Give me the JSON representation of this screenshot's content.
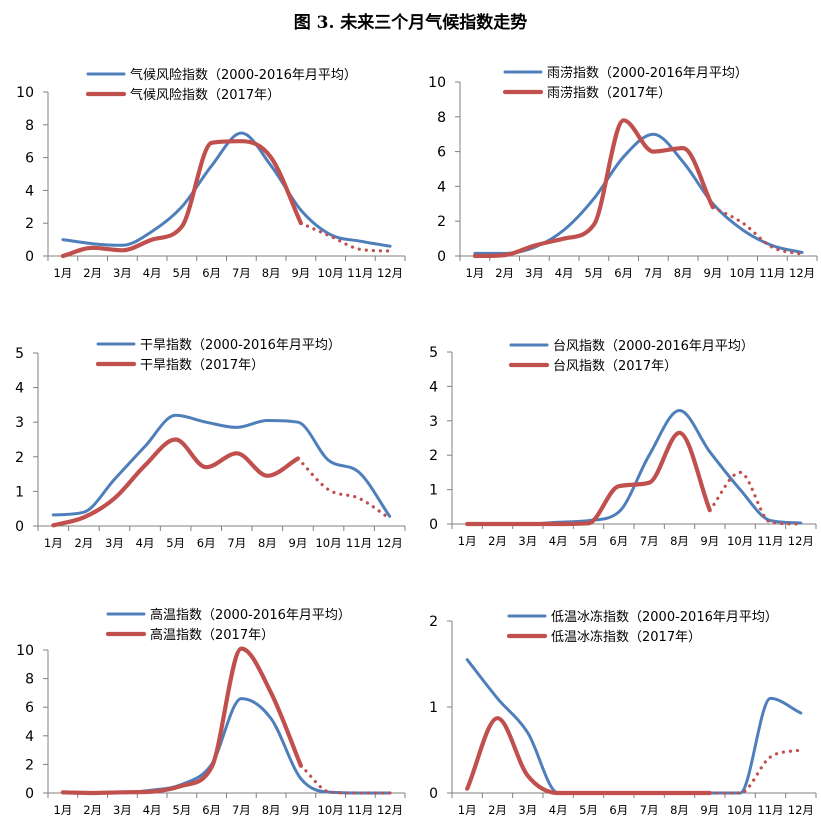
{
  "figure_title": "图 3. 未来三个月气候指数走势",
  "colors": {
    "avg": "#4f7fbb",
    "cur": "#c0504d",
    "axis": "#808080"
  },
  "months": [
    "1月",
    "2月",
    "3月",
    "4月",
    "5月",
    "6月",
    "7月",
    "8月",
    "9月",
    "10月",
    "11月",
    "12月"
  ],
  "chart_data": [
    {
      "type": "line",
      "ylim": [
        0,
        10
      ],
      "yticks": [
        0,
        2,
        4,
        6,
        8,
        10
      ],
      "legend": [
        "气候风险指数（2000-2016年月平均）",
        "气候风险指数（2017年）"
      ],
      "series": [
        {
          "name": "气候风险指数（2000-2016年月平均）",
          "style": "solid",
          "x": [
            1,
            2,
            3,
            4,
            5,
            6,
            7,
            8,
            9,
            10,
            11,
            12
          ],
          "values": [
            1.0,
            0.75,
            0.65,
            1.5,
            3.0,
            5.5,
            7.5,
            5.5,
            2.8,
            1.3,
            0.9,
            0.6
          ]
        },
        {
          "name": "气候风险指数（2017年）",
          "style": "solid",
          "x": [
            1,
            2,
            3,
            4,
            5,
            6,
            7,
            8,
            9
          ],
          "values": [
            0.0,
            0.5,
            0.35,
            1.0,
            1.8,
            6.9,
            7.0,
            6.0,
            2.0
          ]
        },
        {
          "name": "",
          "style": "dotted",
          "x": [
            9,
            10,
            11,
            12
          ],
          "values": [
            2.0,
            1.2,
            0.4,
            0.3
          ]
        }
      ]
    },
    {
      "type": "line",
      "ylim": [
        0,
        10
      ],
      "yticks": [
        0,
        2,
        4,
        6,
        8,
        10
      ],
      "legend": [
        "雨涝指数（2000-2016年月平均）",
        "雨涝指数（2017年）"
      ],
      "series": [
        {
          "name": "雨涝指数（2000-2016年月平均）",
          "style": "solid",
          "x": [
            1,
            2,
            3,
            4,
            5,
            6,
            7,
            8,
            9,
            10,
            11,
            12
          ],
          "values": [
            0.15,
            0.15,
            0.5,
            1.5,
            3.3,
            5.7,
            7.0,
            5.4,
            3.0,
            1.5,
            0.6,
            0.2
          ]
        },
        {
          "name": "雨涝指数（2017年）",
          "style": "solid",
          "x": [
            1,
            2,
            3,
            4,
            5,
            6,
            7,
            8,
            9
          ],
          "values": [
            0.0,
            0.05,
            0.6,
            1.0,
            1.8,
            7.8,
            6.0,
            6.2,
            2.8
          ]
        },
        {
          "name": "",
          "style": "dotted",
          "x": [
            9,
            10,
            11,
            12
          ],
          "values": [
            2.8,
            1.9,
            0.5,
            0.1
          ]
        }
      ]
    },
    {
      "type": "line",
      "ylim": [
        0,
        5
      ],
      "yticks": [
        0,
        1,
        2,
        3,
        4,
        5
      ],
      "legend": [
        "干旱指数（2000-2016年月平均）",
        "干旱指数（2017年）"
      ],
      "series": [
        {
          "name": "干旱指数（2000-2016年月平均）",
          "style": "solid",
          "x": [
            1,
            2,
            3,
            4,
            5,
            6,
            7,
            8,
            9,
            10,
            11,
            12
          ],
          "values": [
            0.32,
            0.4,
            1.35,
            2.3,
            3.2,
            3.0,
            2.85,
            3.05,
            3.0,
            1.9,
            1.55,
            0.28
          ]
        },
        {
          "name": "干旱指数（2017年）",
          "style": "solid",
          "x": [
            1,
            2,
            3,
            4,
            5,
            6,
            7,
            8,
            9
          ],
          "values": [
            0.02,
            0.25,
            0.8,
            1.75,
            2.5,
            1.7,
            2.1,
            1.45,
            1.95
          ]
        },
        {
          "name": "",
          "style": "dotted",
          "x": [
            9,
            10,
            11,
            12
          ],
          "values": [
            1.95,
            1.05,
            0.8,
            0.22
          ]
        }
      ]
    },
    {
      "type": "line",
      "ylim": [
        0,
        5
      ],
      "yticks": [
        0,
        1,
        2,
        3,
        4,
        5
      ],
      "legend": [
        "台风指数（2000-2016年月平均）",
        "台风指数（2017年）"
      ],
      "series": [
        {
          "name": "台风指数（2000-2016年月平均）",
          "style": "solid",
          "x": [
            1,
            2,
            3,
            4,
            5,
            6,
            7,
            8,
            9,
            10,
            11,
            12
          ],
          "values": [
            0.0,
            0.0,
            0.0,
            0.05,
            0.1,
            0.35,
            2.0,
            3.3,
            2.1,
            1.0,
            0.1,
            0.03
          ]
        },
        {
          "name": "台风指数（2017年）",
          "style": "solid",
          "x": [
            1,
            2,
            3,
            4,
            5,
            6,
            7,
            8,
            9
          ],
          "values": [
            0.0,
            0.0,
            0.0,
            0.0,
            0.02,
            1.1,
            1.2,
            2.65,
            0.4
          ]
        },
        {
          "name": "",
          "style": "dotted",
          "x": [
            9,
            10,
            11,
            12
          ],
          "values": [
            0.4,
            1.5,
            0.05,
            0.0
          ]
        }
      ]
    },
    {
      "type": "line",
      "ylim": [
        0,
        10
      ],
      "yticks": [
        0,
        2,
        4,
        6,
        8,
        10
      ],
      "legend": [
        "高温指数（2000-2016年月平均）",
        "高温指数（2017年）"
      ],
      "series": [
        {
          "name": "高温指数（2000-2016年月平均）",
          "style": "solid",
          "x": [
            1,
            2,
            3,
            4,
            5,
            6,
            7,
            8,
            9,
            10,
            11,
            12
          ],
          "values": [
            0.0,
            0.0,
            0.02,
            0.2,
            0.6,
            2.0,
            6.6,
            5.2,
            1.0,
            0.05,
            0.0,
            0.0
          ]
        },
        {
          "name": "高温指数（2017年）",
          "style": "solid",
          "x": [
            1,
            2,
            3,
            4,
            5,
            6,
            7,
            8,
            9
          ],
          "values": [
            0.05,
            0.0,
            0.05,
            0.1,
            0.5,
            1.8,
            10.1,
            7.0,
            1.9
          ]
        },
        {
          "name": "",
          "style": "dotted",
          "x": [
            9,
            10,
            11,
            12
          ],
          "values": [
            1.9,
            0.05,
            0.0,
            0.0
          ]
        }
      ]
    },
    {
      "type": "line",
      "ylim": [
        0,
        2
      ],
      "yticks": [
        0,
        1,
        2
      ],
      "legend": [
        "低温冰冻指数（2000-2016年月平均）",
        "低温冰冻指数（2017年）"
      ],
      "series": [
        {
          "name": "低温冰冻指数（2000-2016年月平均）",
          "style": "solid",
          "x": [
            1,
            2,
            3,
            4,
            5,
            6,
            7,
            8,
            9,
            10,
            11,
            12
          ],
          "values": [
            1.55,
            1.1,
            0.7,
            0.0,
            0.0,
            0.0,
            0.0,
            0.0,
            0.0,
            0.0,
            1.1,
            0.93
          ]
        },
        {
          "name": "低温冰冻指数（2017年）",
          "style": "solid",
          "x": [
            1,
            2,
            3,
            4,
            5,
            6,
            7,
            8,
            9
          ],
          "values": [
            0.05,
            0.87,
            0.2,
            0.0,
            0.0,
            0.0,
            0.0,
            0.0,
            0.0
          ]
        },
        {
          "name": "",
          "style": "dotted",
          "x": [
            9,
            10,
            11,
            12
          ],
          "values": [
            0.0,
            0.0,
            0.42,
            0.5
          ]
        }
      ]
    }
  ]
}
